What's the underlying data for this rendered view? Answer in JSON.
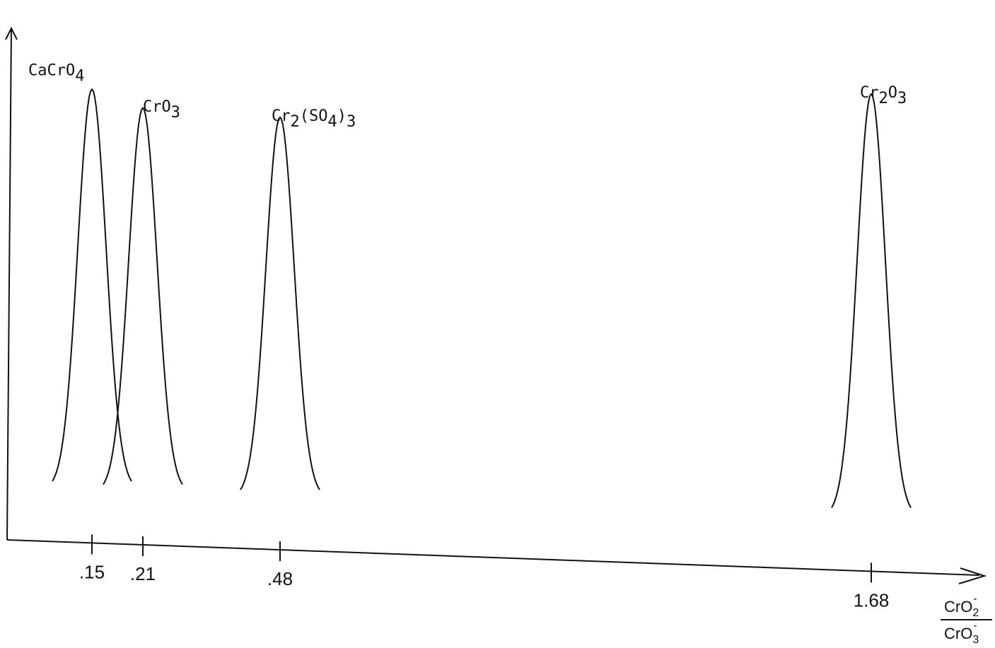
{
  "chart_data": {
    "type": "line",
    "title": "",
    "ylabel": "",
    "xlabel": {
      "numerator_base": "CrO",
      "numerator_sub": "2",
      "numerator_sup": "-",
      "denominator_base": "CrO",
      "denominator_sub": "3",
      "denominator_sup": "-"
    },
    "xticks": [
      {
        "value": 0.15,
        "label": ".15"
      },
      {
        "value": 0.21,
        "label": ".21"
      },
      {
        "value": 0.48,
        "label": ".48"
      },
      {
        "value": 1.68,
        "label": "1.68"
      }
    ],
    "series": [
      {
        "name": "CaCrO4",
        "peak_x": 0.15,
        "relative_height": 0.96,
        "label_parts": [
          {
            "t": "CaCrO",
            "s": "n"
          },
          {
            "t": "4",
            "s": "sub"
          }
        ]
      },
      {
        "name": "CrO3",
        "peak_x": 0.21,
        "relative_height": 0.92,
        "label_parts": [
          {
            "t": "CrO",
            "s": "n"
          },
          {
            "t": "3",
            "s": "sub"
          }
        ]
      },
      {
        "name": "Cr2(SO4)3",
        "peak_x": 0.48,
        "relative_height": 0.9,
        "label_parts": [
          {
            "t": "Cr",
            "s": "n"
          },
          {
            "t": "2",
            "s": "sub"
          },
          {
            "t": "(SO",
            "s": "n"
          },
          {
            "t": "4",
            "s": "sub"
          },
          {
            "t": ")",
            "s": "n"
          },
          {
            "t": "3",
            "s": "sub"
          }
        ]
      },
      {
        "name": "Cr2O3",
        "peak_x": 1.68,
        "relative_height": 0.95,
        "label_parts": [
          {
            "t": "Cr",
            "s": "n"
          },
          {
            "t": "2",
            "s": "sub"
          },
          {
            "t": "O",
            "s": "n"
          },
          {
            "t": "3",
            "s": "sub"
          }
        ]
      }
    ],
    "grid": false,
    "legend": "none"
  }
}
